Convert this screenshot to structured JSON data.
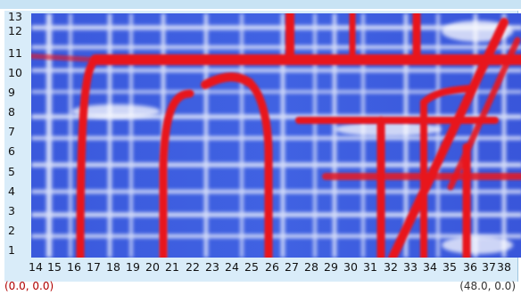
{
  "window": {
    "topbar_color": "#c8e3f4"
  },
  "plot": {
    "y_ticks": [
      "13",
      "12",
      "11",
      "10",
      "9",
      "8",
      "7",
      "6",
      "5",
      "4",
      "3",
      "2",
      "1"
    ],
    "x_ticks": [
      "14",
      "15",
      "16",
      "17",
      "18",
      "19",
      "20",
      "21",
      "22",
      "23",
      "24",
      "25",
      "26",
      "27",
      "28",
      "29",
      "30",
      "31",
      "32",
      "33",
      "34",
      "35",
      "36",
      "37",
      "38"
    ],
    "background_color": "#3d5ce0",
    "highlight_color": "#e8191f",
    "grid_line_color": "#e9eefc"
  },
  "coords": {
    "bottom_left": "(0.0, 0.0)",
    "bottom_right": "(48.0, 0.0)"
  }
}
